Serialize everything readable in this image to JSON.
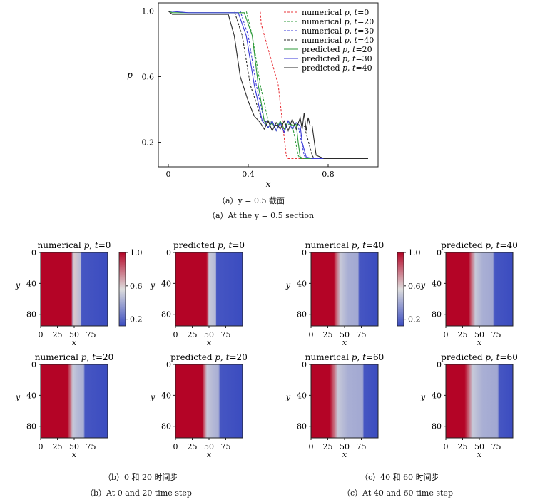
{
  "main_chart": {
    "xlabel": "x",
    "ylabel": "p",
    "xlim": [
      -0.05,
      1.05
    ],
    "ylim": [
      0.05,
      1.05
    ],
    "xticks": [
      "0",
      "0.4",
      "0.8"
    ],
    "xtick_values": [
      0,
      0.4,
      0.8
    ],
    "yticks": [
      "1.0",
      "0.6",
      "0.2"
    ],
    "ytick_values": [
      1.0,
      0.6,
      0.2
    ],
    "legend": [
      {
        "label": "numerical p, t=0",
        "name": "numerical",
        "var": "p",
        "t": "0",
        "color": "#e8343a",
        "dash": true
      },
      {
        "label": "numerical p, t=20",
        "name": "numerical",
        "var": "p",
        "t": "20",
        "color": "#2e9a3a",
        "dash": true
      },
      {
        "label": "numerical p, t=30",
        "name": "numerical",
        "var": "p",
        "t": "30",
        "color": "#3a3ad8",
        "dash": true
      },
      {
        "label": "numerical p, t=40",
        "name": "numerical",
        "var": "p",
        "t": "40",
        "color": "#2a2a2a",
        "dash": true
      },
      {
        "label": "predicted p, t=20",
        "name": "predicted",
        "var": "p",
        "t": "20",
        "color": "#2e9a3a",
        "dash": false
      },
      {
        "label": "predicted p, t=30",
        "name": "predicted",
        "var": "p",
        "t": "30",
        "color": "#3a3ad8",
        "dash": false
      },
      {
        "label": "predicted p, t=40",
        "name": "predicted",
        "var": "p",
        "t": "40",
        "color": "#2a2a2a",
        "dash": false
      }
    ],
    "caption_cn": "（a）y = 0.5 截面",
    "caption_en": "（a）At the y = 0.5 section"
  },
  "chart_data": [
    {
      "type": "line",
      "xlabel": "x",
      "ylabel": "p",
      "series": [
        {
          "name": "numerical p, t=0",
          "x": [
            0.0,
            0.46,
            0.465,
            0.55,
            0.59,
            0.6,
            1.0
          ],
          "y": [
            1.0,
            1.0,
            0.92,
            0.55,
            0.12,
            0.1,
            0.1
          ]
        },
        {
          "name": "numerical p, t=20",
          "x": [
            0.0,
            0.39,
            0.42,
            0.46,
            0.5,
            0.55,
            0.62,
            0.65,
            0.66,
            1.0
          ],
          "y": [
            1.0,
            1.0,
            0.85,
            0.55,
            0.33,
            0.31,
            0.31,
            0.12,
            0.1,
            0.1
          ]
        },
        {
          "name": "numerical p, t=30",
          "x": [
            0.0,
            0.36,
            0.4,
            0.44,
            0.48,
            0.55,
            0.65,
            0.68,
            0.69,
            1.0
          ],
          "y": [
            1.0,
            1.0,
            0.85,
            0.55,
            0.33,
            0.3,
            0.3,
            0.12,
            0.1,
            0.1
          ]
        },
        {
          "name": "numerical p, t=40",
          "x": [
            0.0,
            0.33,
            0.37,
            0.41,
            0.47,
            0.55,
            0.68,
            0.72,
            0.73,
            1.0
          ],
          "y": [
            1.0,
            1.0,
            0.85,
            0.55,
            0.33,
            0.3,
            0.3,
            0.12,
            0.1,
            0.1
          ]
        },
        {
          "name": "predicted p, t=20",
          "x": [
            0.0,
            0.02,
            0.1,
            0.38,
            0.42,
            0.45,
            0.48,
            0.5,
            0.52,
            0.54,
            0.56,
            0.58,
            0.6,
            0.62,
            0.64,
            0.65,
            0.66,
            0.68,
            0.8,
            1.0
          ],
          "y": [
            1.0,
            0.99,
            0.99,
            0.99,
            0.85,
            0.55,
            0.33,
            0.29,
            0.32,
            0.27,
            0.33,
            0.28,
            0.33,
            0.3,
            0.31,
            0.2,
            0.11,
            0.1,
            0.1,
            0.1
          ]
        },
        {
          "name": "predicted p, t=30",
          "x": [
            0.0,
            0.1,
            0.35,
            0.39,
            0.43,
            0.47,
            0.5,
            0.52,
            0.54,
            0.56,
            0.58,
            0.6,
            0.62,
            0.64,
            0.66,
            0.67,
            0.69,
            0.72,
            1.0
          ],
          "y": [
            1.0,
            0.99,
            0.99,
            0.85,
            0.55,
            0.33,
            0.29,
            0.33,
            0.27,
            0.32,
            0.26,
            0.33,
            0.28,
            0.32,
            0.3,
            0.2,
            0.11,
            0.1,
            0.1
          ]
        },
        {
          "name": "predicted p, t=40",
          "x": [
            0.0,
            0.02,
            0.1,
            0.3,
            0.33,
            0.36,
            0.4,
            0.43,
            0.46,
            0.48,
            0.5,
            0.52,
            0.54,
            0.56,
            0.58,
            0.6,
            0.62,
            0.64,
            0.66,
            0.67,
            0.68,
            0.69,
            0.7,
            0.71,
            0.72,
            0.74,
            0.78,
            1.0
          ],
          "y": [
            1.0,
            0.98,
            0.98,
            0.98,
            0.85,
            0.6,
            0.45,
            0.36,
            0.32,
            0.28,
            0.33,
            0.27,
            0.32,
            0.28,
            0.33,
            0.27,
            0.34,
            0.28,
            0.35,
            0.28,
            0.38,
            0.27,
            0.35,
            0.3,
            0.3,
            0.12,
            0.1,
            0.1
          ]
        }
      ]
    },
    {
      "type": "heatmap",
      "title": "numerical p, t=0",
      "xlabel": "x",
      "ylabel": "y",
      "p_by_x": [
        [
          0,
          1.0
        ],
        [
          45,
          1.0
        ],
        [
          46,
          0.95
        ],
        [
          48,
          0.45
        ],
        [
          50,
          0.6
        ],
        [
          60,
          0.45
        ],
        [
          61,
          0.15
        ],
        [
          100,
          0.12
        ]
      ]
    },
    {
      "type": "heatmap",
      "title": "predicted p, t=0",
      "xlabel": "x",
      "ylabel": "y",
      "p_by_x": [
        [
          0,
          1.0
        ],
        [
          46,
          1.0
        ],
        [
          48,
          0.85
        ],
        [
          50,
          0.5
        ],
        [
          60,
          0.45
        ],
        [
          61,
          0.15
        ],
        [
          100,
          0.12
        ]
      ]
    },
    {
      "type": "heatmap",
      "title": "numerical p, t=20",
      "xlabel": "x",
      "ylabel": "y",
      "p_by_x": [
        [
          0,
          1.0
        ],
        [
          40,
          1.0
        ],
        [
          44,
          0.8
        ],
        [
          48,
          0.5
        ],
        [
          55,
          0.45
        ],
        [
          64,
          0.42
        ],
        [
          66,
          0.15
        ],
        [
          100,
          0.12
        ]
      ]
    },
    {
      "type": "heatmap",
      "title": "predicted p, t=20",
      "xlabel": "x",
      "ylabel": "y",
      "p_by_x": [
        [
          0,
          1.0
        ],
        [
          40,
          1.0
        ],
        [
          43,
          0.8
        ],
        [
          47,
          0.5
        ],
        [
          55,
          0.45
        ],
        [
          64,
          0.42
        ],
        [
          67,
          0.15
        ],
        [
          100,
          0.12
        ]
      ]
    },
    {
      "type": "heatmap",
      "title": "numerical p, t=40",
      "xlabel": "x",
      "ylabel": "y",
      "p_by_x": [
        [
          0,
          1.0
        ],
        [
          34,
          1.0
        ],
        [
          38,
          0.8
        ],
        [
          44,
          0.5
        ],
        [
          55,
          0.42
        ],
        [
          70,
          0.4
        ],
        [
          72,
          0.15
        ],
        [
          100,
          0.12
        ]
      ]
    },
    {
      "type": "heatmap",
      "title": "predicted p, t=40",
      "xlabel": "x",
      "ylabel": "y",
      "p_by_x": [
        [
          0,
          1.0
        ],
        [
          34,
          1.0
        ],
        [
          38,
          0.8
        ],
        [
          44,
          0.5
        ],
        [
          55,
          0.42
        ],
        [
          70,
          0.4
        ],
        [
          73,
          0.15
        ],
        [
          100,
          0.12
        ]
      ]
    },
    {
      "type": "heatmap",
      "title": "numerical p, t=60",
      "xlabel": "x",
      "ylabel": "y",
      "p_by_x": [
        [
          0,
          1.0
        ],
        [
          28,
          1.0
        ],
        [
          34,
          0.8
        ],
        [
          40,
          0.5
        ],
        [
          55,
          0.42
        ],
        [
          77,
          0.4
        ],
        [
          79,
          0.15
        ],
        [
          100,
          0.12
        ]
      ]
    },
    {
      "type": "heatmap",
      "title": "predicted p, t=60",
      "xlabel": "x",
      "ylabel": "y",
      "p_by_x": [
        [
          0,
          1.0
        ],
        [
          28,
          1.0
        ],
        [
          34,
          0.8
        ],
        [
          40,
          0.5
        ],
        [
          55,
          0.42
        ],
        [
          77,
          0.4
        ],
        [
          80,
          0.15
        ],
        [
          100,
          0.12
        ]
      ]
    }
  ],
  "heatmaps": {
    "xticks": [
      "0",
      "25",
      "50",
      "75"
    ],
    "xtick_values": [
      0,
      25,
      50,
      75
    ],
    "yticks": [
      "0",
      "40",
      "80"
    ],
    "ytick_values": [
      0,
      40,
      80
    ],
    "xlabel": "x",
    "ylabel": "y",
    "colorbar_ticks": [
      "1.0",
      "0.6",
      "0.2"
    ],
    "colorbar_values": [
      1.0,
      0.6,
      0.2
    ],
    "color_low": "#3b4cc0",
    "color_mid": "#dddddd",
    "color_high": "#b40426"
  },
  "captions": {
    "b_cn": "（b）0 和 20 时间步",
    "b_en": "（b）At 0 and 20 time step",
    "c_cn": "（c）40 和 60 时间步",
    "c_en": "（c）At 40 and 60 time step"
  }
}
